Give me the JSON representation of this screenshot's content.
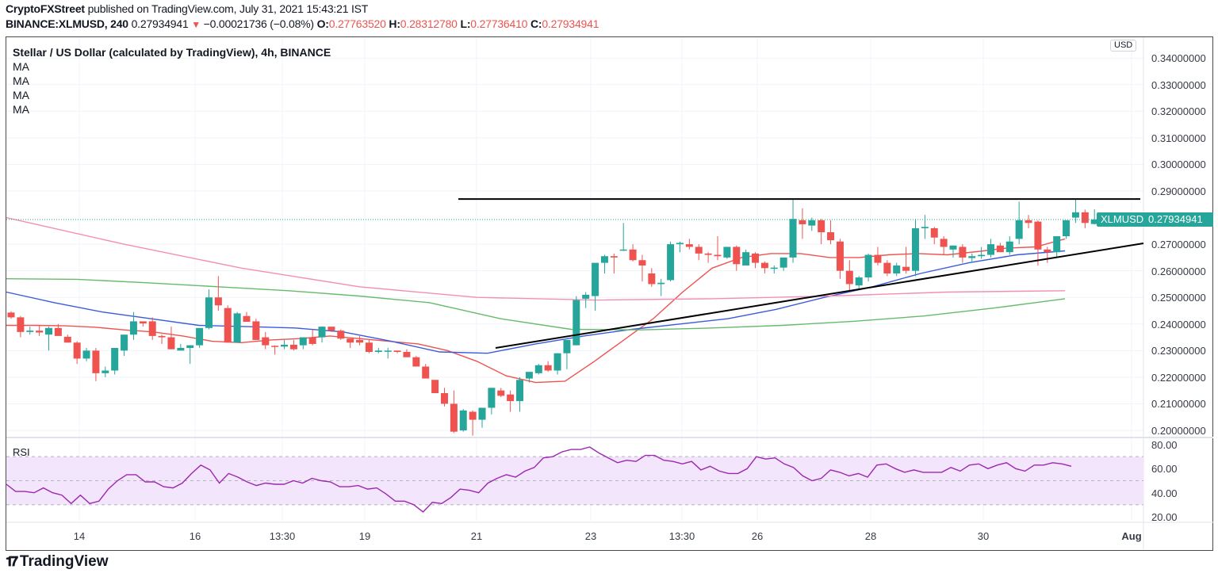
{
  "header": {
    "publisher": "CryptoFXStreet",
    "published_text": "published on TradingView.com, July 31, 2021 15:43:21 IST",
    "symbol": "BINANCE:XLMUSD, 240",
    "last": "0.27934941",
    "change_icon": "triangle-down-icon",
    "change": "−0.00021736 (−0.08%)",
    "o_label": "O:",
    "o": "0.27763520",
    "h_label": "H:",
    "h": "0.28312780",
    "l_label": "L:",
    "l": "0.27736410",
    "c_label": "C:",
    "c": "0.27934941"
  },
  "legend": {
    "title": "Stellar / US Dollar (calculated by TradingView), 4h, BINANCE",
    "indicators": [
      "MA",
      "MA",
      "MA",
      "MA"
    ]
  },
  "price_axis": {
    "currency_button": "USD",
    "ticks": [
      "0.34000000",
      "0.33000000",
      "0.32000000",
      "0.31000000",
      "0.30000000",
      "0.29000000",
      "0.27000000",
      "0.26000000",
      "0.25000000",
      "0.24000000",
      "0.23000000",
      "0.22000000",
      "0.21000000",
      "0.20000000"
    ],
    "last_symbol": "XLMUSD",
    "last_value": "0.27934941"
  },
  "rsi": {
    "label": "RSI",
    "ticks": [
      "80.00",
      "60.00",
      "40.00",
      "20.00"
    ]
  },
  "time_axis": {
    "ticks": [
      "14",
      "16",
      "13:30",
      "19",
      "21",
      "23",
      "13:30",
      "26",
      "28",
      "30",
      "Aug"
    ]
  },
  "brand": {
    "logo_icon": "tradingview-logo-icon",
    "name": "TradingView"
  },
  "colors": {
    "up": "#26a69a",
    "down": "#ef5350",
    "ma_red": "#ef5350",
    "ma_blue": "#3a5bd9",
    "ma_green": "#66bb6a",
    "ma_pink": "#f48fb1",
    "rsi_line": "#9c27b0",
    "rsi_band": "#f3e5fc"
  },
  "chart_data": {
    "type": "candlestick",
    "title": "Stellar / US Dollar (calculated by TradingView), 4h, BINANCE",
    "ylabel": "USD",
    "ylim": [
      0.198,
      0.345
    ],
    "candles": [
      [
        0.2443,
        0.2448,
        0.242,
        0.2425
      ],
      [
        0.2425,
        0.243,
        0.235,
        0.237
      ],
      [
        0.237,
        0.239,
        0.236,
        0.2375
      ],
      [
        0.2375,
        0.2395,
        0.2355,
        0.2368
      ],
      [
        0.236,
        0.239,
        0.23,
        0.2385
      ],
      [
        0.2385,
        0.24,
        0.236,
        0.2355
      ],
      [
        0.2352,
        0.236,
        0.233,
        0.233
      ],
      [
        0.233,
        0.2335,
        0.225,
        0.227
      ],
      [
        0.227,
        0.231,
        0.226,
        0.23
      ],
      [
        0.23,
        0.231,
        0.2185,
        0.2215
      ],
      [
        0.2215,
        0.224,
        0.22,
        0.2225
      ],
      [
        0.2225,
        0.23,
        0.221,
        0.231
      ],
      [
        0.23,
        0.236,
        0.228,
        0.236
      ],
      [
        0.236,
        0.2445,
        0.234,
        0.241
      ],
      [
        0.241,
        0.2405,
        0.239,
        0.2402
      ],
      [
        0.241,
        0.2425,
        0.234,
        0.2355
      ],
      [
        0.2355,
        0.236,
        0.2325,
        0.235
      ],
      [
        0.235,
        0.239,
        0.2305,
        0.2305
      ],
      [
        0.23,
        0.2325,
        0.23,
        0.231
      ],
      [
        0.231,
        0.232,
        0.225,
        0.232
      ],
      [
        0.232,
        0.2385,
        0.231,
        0.2385
      ],
      [
        0.2385,
        0.253,
        0.238,
        0.25
      ],
      [
        0.25,
        0.258,
        0.245,
        0.247
      ],
      [
        0.246,
        0.247,
        0.233,
        0.233
      ],
      [
        0.233,
        0.2445,
        0.233,
        0.244
      ],
      [
        0.243,
        0.2445,
        0.241,
        0.2408
      ],
      [
        0.241,
        0.242,
        0.234,
        0.234
      ],
      [
        0.235,
        0.237,
        0.2305,
        0.232
      ],
      [
        0.2318,
        0.232,
        0.2285,
        0.2315
      ],
      [
        0.2315,
        0.234,
        0.2305,
        0.2322
      ],
      [
        0.2322,
        0.234,
        0.23,
        0.2305
      ],
      [
        0.232,
        0.235,
        0.2305,
        0.235
      ],
      [
        0.235,
        0.238,
        0.232,
        0.2325
      ],
      [
        0.235,
        0.239,
        0.233,
        0.239
      ],
      [
        0.239,
        0.2385,
        0.237,
        0.2375
      ],
      [
        0.2375,
        0.238,
        0.234,
        0.2345
      ],
      [
        0.2345,
        0.2345,
        0.231,
        0.233
      ],
      [
        0.234,
        0.2355,
        0.232,
        0.233
      ],
      [
        0.233,
        0.234,
        0.229,
        0.2295
      ],
      [
        0.2295,
        0.231,
        0.229,
        0.23
      ],
      [
        0.23,
        0.231,
        0.227,
        0.23
      ],
      [
        0.23,
        0.23,
        0.229,
        0.2295
      ],
      [
        0.2295,
        0.2305,
        0.228,
        0.2275
      ],
      [
        0.2275,
        0.228,
        0.224,
        0.224
      ],
      [
        0.224,
        0.225,
        0.22,
        0.2195
      ],
      [
        0.219,
        0.218,
        0.214,
        0.214
      ],
      [
        0.214,
        0.216,
        0.209,
        0.21
      ],
      [
        0.21,
        0.215,
        0.199,
        0.1995
      ],
      [
        0.2,
        0.208,
        0.1995,
        0.2075
      ],
      [
        0.207,
        0.2075,
        0.198,
        0.204
      ],
      [
        0.204,
        0.208,
        0.201,
        0.2085
      ],
      [
        0.2085,
        0.216,
        0.206,
        0.216
      ],
      [
        0.215,
        0.216,
        0.2125,
        0.213
      ],
      [
        0.2135,
        0.215,
        0.207,
        0.211
      ],
      [
        0.211,
        0.22,
        0.207,
        0.219
      ],
      [
        0.2195,
        0.222,
        0.218,
        0.222
      ],
      [
        0.2215,
        0.225,
        0.221,
        0.2245
      ],
      [
        0.2245,
        0.226,
        0.222,
        0.2225
      ],
      [
        0.2225,
        0.229,
        0.221,
        0.229
      ],
      [
        0.229,
        0.233,
        0.223,
        0.234
      ],
      [
        0.232,
        0.2505,
        0.232,
        0.249
      ],
      [
        0.2495,
        0.252,
        0.246,
        0.251
      ],
      [
        0.2505,
        0.262,
        0.245,
        0.263
      ],
      [
        0.263,
        0.266,
        0.259,
        0.2655
      ],
      [
        0.2655,
        0.2665,
        0.259,
        0.265
      ],
      [
        0.268,
        0.278,
        0.2675,
        0.268
      ],
      [
        0.268,
        0.27,
        0.2635,
        0.264
      ],
      [
        0.264,
        0.266,
        0.256,
        0.262
      ],
      [
        0.259,
        0.261,
        0.254,
        0.255
      ],
      [
        0.255,
        0.257,
        0.2505,
        0.2555
      ],
      [
        0.2565,
        0.271,
        0.256,
        0.27
      ],
      [
        0.27,
        0.271,
        0.267,
        0.2705
      ],
      [
        0.27,
        0.272,
        0.268,
        0.269
      ],
      [
        0.269,
        0.27,
        0.264,
        0.2665
      ],
      [
        0.2665,
        0.267,
        0.263,
        0.266
      ],
      [
        0.266,
        0.273,
        0.264,
        0.2655
      ],
      [
        0.265,
        0.269,
        0.2645,
        0.269
      ],
      [
        0.269,
        0.2695,
        0.26,
        0.2625
      ],
      [
        0.262,
        0.268,
        0.262,
        0.267
      ],
      [
        0.2665,
        0.267,
        0.261,
        0.263
      ],
      [
        0.263,
        0.2635,
        0.259,
        0.261
      ],
      [
        0.261,
        0.262,
        0.259,
        0.2612
      ],
      [
        0.2612,
        0.265,
        0.26,
        0.265
      ],
      [
        0.265,
        0.287,
        0.263,
        0.2795
      ],
      [
        0.279,
        0.2835,
        0.272,
        0.2775
      ],
      [
        0.277,
        0.28,
        0.275,
        0.279
      ],
      [
        0.279,
        0.2795,
        0.27,
        0.2745
      ],
      [
        0.2745,
        0.279,
        0.27,
        0.2715
      ],
      [
        0.271,
        0.272,
        0.257,
        0.26
      ],
      [
        0.26,
        0.264,
        0.252,
        0.255
      ],
      [
        0.2545,
        0.258,
        0.253,
        0.2575
      ],
      [
        0.2575,
        0.2665,
        0.256,
        0.266
      ],
      [
        0.266,
        0.269,
        0.262,
        0.263
      ],
      [
        0.263,
        0.264,
        0.258,
        0.259
      ],
      [
        0.259,
        0.263,
        0.258,
        0.262
      ],
      [
        0.2615,
        0.269,
        0.259,
        0.26
      ],
      [
        0.26,
        0.2795,
        0.258,
        0.276
      ],
      [
        0.276,
        0.281,
        0.272,
        0.2765
      ],
      [
        0.276,
        0.2765,
        0.27,
        0.2725
      ],
      [
        0.272,
        0.273,
        0.266,
        0.269
      ],
      [
        0.268,
        0.2695,
        0.265,
        0.2695
      ],
      [
        0.269,
        0.27,
        0.263,
        0.265
      ],
      [
        0.2648,
        0.2665,
        0.263,
        0.2655
      ],
      [
        0.2655,
        0.269,
        0.2645,
        0.266
      ],
      [
        0.266,
        0.272,
        0.265,
        0.27
      ],
      [
        0.2695,
        0.2705,
        0.267,
        0.267
      ],
      [
        0.267,
        0.273,
        0.266,
        0.271
      ],
      [
        0.272,
        0.286,
        0.27,
        0.279
      ],
      [
        0.279,
        0.281,
        0.276,
        0.278
      ],
      [
        0.2785,
        0.279,
        0.262,
        0.268
      ],
      [
        0.268,
        0.269,
        0.263,
        0.267
      ],
      [
        0.267,
        0.273,
        0.265,
        0.273
      ],
      [
        0.273,
        0.279,
        0.272,
        0.279
      ],
      [
        0.28,
        0.287,
        0.278,
        0.282
      ],
      [
        0.282,
        0.283,
        0.276,
        0.278
      ],
      [
        0.2776,
        0.2831,
        0.2774,
        0.2793
      ]
    ],
    "series": [
      {
        "name": "MA (red)",
        "values": [
          0.2395,
          0.2395,
          0.2393,
          0.2388,
          0.2378,
          0.237,
          0.2355,
          0.2335,
          0.233,
          0.234,
          0.2345,
          0.2355,
          0.2345,
          0.2335,
          0.2325,
          0.23,
          0.226,
          0.2205,
          0.218,
          0.2185,
          0.226,
          0.234,
          0.242,
          0.252,
          0.261,
          0.265,
          0.2665,
          0.2665,
          0.265,
          0.265,
          0.266,
          0.2665,
          0.266,
          0.2672,
          0.2685,
          0.269,
          0.272
        ]
      },
      {
        "name": "MA (blue)",
        "values": [
          0.252,
          0.248,
          0.2445,
          0.242,
          0.2395,
          0.239,
          0.2385,
          0.237,
          0.2335,
          0.2295,
          0.229,
          0.2325,
          0.2355,
          0.238,
          0.24,
          0.242,
          0.2455,
          0.25,
          0.254,
          0.259,
          0.263,
          0.266,
          0.2675
        ]
      },
      {
        "name": "MA (green)",
        "values": [
          0.257,
          0.2568,
          0.2555,
          0.254,
          0.2525,
          0.2505,
          0.248,
          0.242,
          0.238,
          0.2378,
          0.2385,
          0.2395,
          0.241,
          0.243,
          0.246,
          0.2495
        ]
      },
      {
        "name": "MA (pink)",
        "values": [
          0.28,
          0.27,
          0.261,
          0.254,
          0.25,
          0.249,
          0.2495,
          0.2505,
          0.252,
          0.2525
        ]
      }
    ],
    "trendlines": [
      {
        "name": "resistance",
        "from": [
          0.287
        ],
        "to": [
          0.287
        ]
      },
      {
        "name": "ascending support",
        "from": [
          0.231
        ],
        "to": [
          0.2705
        ]
      }
    ],
    "rsi": {
      "ylim": [
        20,
        80
      ],
      "bands": [
        30,
        50,
        70
      ],
      "values": [
        47,
        41,
        41,
        40,
        44,
        40,
        38,
        31,
        38,
        31,
        33,
        43,
        50,
        55,
        55,
        49,
        49,
        45,
        44,
        48,
        56,
        63,
        59,
        48,
        56,
        53,
        49,
        46,
        48,
        47,
        47,
        50,
        48,
        52,
        50,
        49,
        45,
        45,
        46,
        43,
        44,
        39,
        33,
        33,
        30,
        24,
        32,
        31,
        36,
        43,
        42,
        40,
        48,
        52,
        55,
        53,
        58,
        61,
        69,
        70,
        74,
        76,
        76,
        78,
        73,
        69,
        65,
        67,
        66,
        71,
        71,
        67,
        66,
        64,
        66,
        59,
        62,
        58,
        56,
        56,
        60,
        70,
        68,
        69,
        64,
        61,
        54,
        50,
        52,
        59,
        57,
        54,
        56,
        53,
        63,
        64,
        60,
        57,
        59,
        57,
        57,
        57,
        61,
        58,
        63,
        64,
        60,
        63,
        65,
        60,
        58,
        63,
        63,
        65,
        64,
        62
      ]
    },
    "xlabels": [
      "14",
      "16",
      "13:30",
      "19",
      "21",
      "23",
      "13:30",
      "26",
      "28",
      "30",
      "Aug"
    ]
  }
}
